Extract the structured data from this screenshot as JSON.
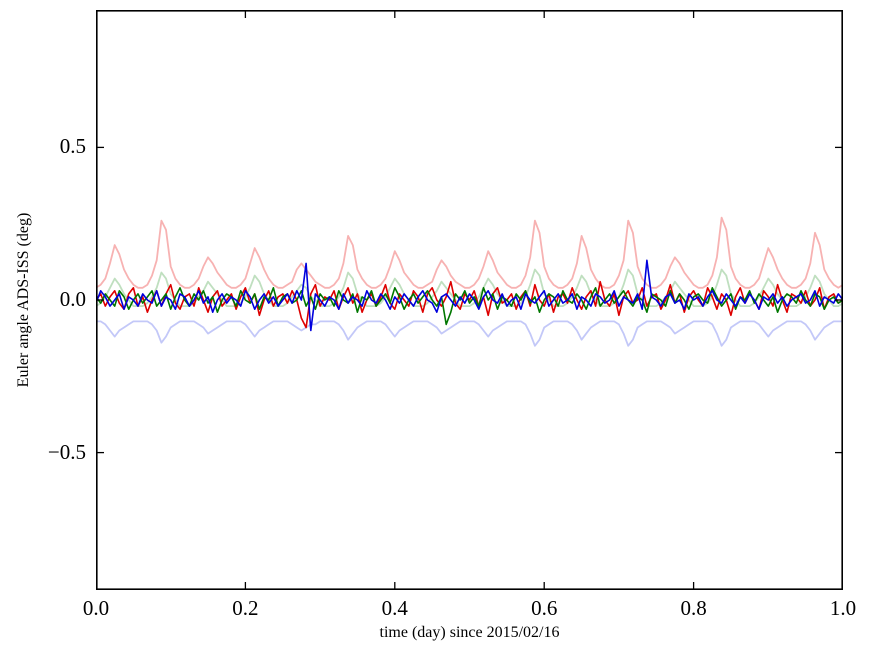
{
  "figure": {
    "background": "#ffffff",
    "frame_color": "#000000"
  },
  "chart_data": {
    "type": "line",
    "title": "",
    "xlabel": "time (day) since 2015/02/16",
    "ylabel": "Euler angle ADS-ISS (deg)",
    "xlim": [
      0.0,
      1.0
    ],
    "ylim": [
      -0.95,
      0.95
    ],
    "grid": false,
    "legend": null,
    "x_sampling_note": "each series holds 161 samples uniformly spaced over time 0.0 to 1.0 day",
    "xticks": [
      {
        "value": 0.0,
        "label": "0.0"
      },
      {
        "value": 0.2,
        "label": "0.2"
      },
      {
        "value": 0.4,
        "label": "0.4"
      },
      {
        "value": 0.6,
        "label": "0.6"
      },
      {
        "value": 0.8,
        "label": "0.8"
      },
      {
        "value": 1.0,
        "label": "1.0"
      }
    ],
    "yticks": [
      {
        "value": -0.5,
        "label": "−0.5"
      },
      {
        "value": 0.0,
        "label": "0.0"
      },
      {
        "value": 0.5,
        "label": "0.5"
      }
    ],
    "series": [
      {
        "name": "red-light",
        "color": "#f7b2b2",
        "width": 1.8,
        "values": [
          0.04,
          0.05,
          0.07,
          0.12,
          0.18,
          0.15,
          0.1,
          0.07,
          0.05,
          0.04,
          0.04,
          0.05,
          0.08,
          0.13,
          0.26,
          0.23,
          0.11,
          0.07,
          0.05,
          0.04,
          0.04,
          0.05,
          0.07,
          0.11,
          0.14,
          0.12,
          0.09,
          0.07,
          0.05,
          0.04,
          0.04,
          0.05,
          0.07,
          0.12,
          0.17,
          0.14,
          0.1,
          0.07,
          0.05,
          0.04,
          0.04,
          0.05,
          0.06,
          0.1,
          0.12,
          0.1,
          0.08,
          0.06,
          0.05,
          0.04,
          0.04,
          0.05,
          0.07,
          0.12,
          0.21,
          0.18,
          0.1,
          0.07,
          0.05,
          0.04,
          0.04,
          0.05,
          0.07,
          0.11,
          0.16,
          0.13,
          0.09,
          0.07,
          0.05,
          0.04,
          0.04,
          0.05,
          0.06,
          0.1,
          0.13,
          0.11,
          0.08,
          0.06,
          0.05,
          0.04,
          0.04,
          0.05,
          0.07,
          0.11,
          0.16,
          0.13,
          0.09,
          0.07,
          0.05,
          0.04,
          0.04,
          0.05,
          0.08,
          0.14,
          0.26,
          0.22,
          0.11,
          0.07,
          0.05,
          0.04,
          0.04,
          0.05,
          0.07,
          0.12,
          0.21,
          0.17,
          0.1,
          0.07,
          0.05,
          0.04,
          0.04,
          0.05,
          0.08,
          0.13,
          0.26,
          0.22,
          0.11,
          0.07,
          0.05,
          0.04,
          0.04,
          0.05,
          0.07,
          0.11,
          0.14,
          0.12,
          0.09,
          0.07,
          0.05,
          0.04,
          0.04,
          0.05,
          0.08,
          0.14,
          0.27,
          0.23,
          0.11,
          0.07,
          0.05,
          0.04,
          0.04,
          0.05,
          0.07,
          0.12,
          0.17,
          0.14,
          0.1,
          0.07,
          0.05,
          0.04,
          0.04,
          0.05,
          0.07,
          0.12,
          0.22,
          0.18,
          0.1,
          0.07,
          0.05,
          0.04,
          0.05
        ]
      },
      {
        "name": "green-light",
        "color": "#bfdfbf",
        "width": 1.8,
        "values": [
          -0.02,
          -0.01,
          0.01,
          0.04,
          0.07,
          0.05,
          0.02,
          0.0,
          -0.02,
          -0.02,
          -0.02,
          -0.01,
          0.01,
          0.04,
          0.09,
          0.07,
          0.02,
          0.0,
          -0.02,
          -0.02,
          -0.02,
          -0.01,
          0.01,
          0.03,
          0.06,
          0.04,
          0.02,
          0.0,
          -0.02,
          -0.02,
          -0.02,
          -0.01,
          0.01,
          0.04,
          0.08,
          0.06,
          0.02,
          0.0,
          -0.02,
          -0.02,
          -0.02,
          -0.01,
          0.01,
          0.03,
          0.05,
          0.04,
          0.01,
          0.0,
          -0.02,
          -0.02,
          -0.02,
          -0.01,
          0.01,
          0.04,
          0.09,
          0.07,
          0.02,
          0.0,
          -0.02,
          -0.02,
          -0.02,
          -0.01,
          0.01,
          0.04,
          0.07,
          0.05,
          0.02,
          0.0,
          -0.02,
          -0.02,
          -0.02,
          -0.01,
          0.01,
          0.03,
          0.06,
          0.04,
          0.02,
          0.0,
          -0.02,
          -0.02,
          -0.02,
          -0.01,
          0.01,
          0.04,
          0.07,
          0.05,
          0.02,
          0.0,
          -0.02,
          -0.02,
          -0.02,
          -0.01,
          0.01,
          0.05,
          0.1,
          0.08,
          0.02,
          0.0,
          -0.02,
          -0.02,
          -0.02,
          -0.01,
          0.01,
          0.04,
          0.08,
          0.06,
          0.02,
          0.0,
          -0.02,
          -0.02,
          -0.02,
          -0.01,
          0.01,
          0.05,
          0.1,
          0.08,
          0.02,
          0.0,
          -0.02,
          -0.02,
          -0.02,
          -0.01,
          0.01,
          0.03,
          0.06,
          0.04,
          0.02,
          0.0,
          -0.02,
          -0.02,
          -0.02,
          -0.01,
          0.01,
          0.05,
          0.1,
          0.08,
          0.02,
          0.0,
          -0.02,
          -0.02,
          -0.02,
          -0.01,
          0.01,
          0.04,
          0.07,
          0.05,
          0.02,
          0.0,
          -0.02,
          -0.02,
          -0.02,
          -0.01,
          0.01,
          0.04,
          0.08,
          0.06,
          0.02,
          0.0,
          -0.02,
          -0.02,
          -0.01
        ]
      },
      {
        "name": "blue-light",
        "color": "#c3c8f8",
        "width": 1.8,
        "values": [
          -0.07,
          -0.07,
          -0.08,
          -0.1,
          -0.12,
          -0.1,
          -0.09,
          -0.08,
          -0.07,
          -0.07,
          -0.07,
          -0.07,
          -0.08,
          -0.1,
          -0.14,
          -0.12,
          -0.09,
          -0.08,
          -0.07,
          -0.07,
          -0.07,
          -0.07,
          -0.08,
          -0.09,
          -0.11,
          -0.1,
          -0.09,
          -0.08,
          -0.07,
          -0.07,
          -0.07,
          -0.07,
          -0.08,
          -0.1,
          -0.12,
          -0.1,
          -0.09,
          -0.08,
          -0.07,
          -0.07,
          -0.07,
          -0.07,
          -0.08,
          -0.09,
          -0.1,
          -0.09,
          -0.08,
          -0.08,
          -0.07,
          -0.07,
          -0.07,
          -0.07,
          -0.08,
          -0.1,
          -0.13,
          -0.11,
          -0.09,
          -0.08,
          -0.07,
          -0.07,
          -0.07,
          -0.07,
          -0.08,
          -0.1,
          -0.12,
          -0.1,
          -0.09,
          -0.08,
          -0.07,
          -0.07,
          -0.07,
          -0.07,
          -0.08,
          -0.09,
          -0.11,
          -0.1,
          -0.09,
          -0.08,
          -0.07,
          -0.07,
          -0.07,
          -0.07,
          -0.08,
          -0.1,
          -0.12,
          -0.1,
          -0.09,
          -0.08,
          -0.07,
          -0.07,
          -0.07,
          -0.07,
          -0.08,
          -0.11,
          -0.15,
          -0.13,
          -0.09,
          -0.08,
          -0.07,
          -0.07,
          -0.07,
          -0.07,
          -0.08,
          -0.1,
          -0.13,
          -0.11,
          -0.09,
          -0.08,
          -0.07,
          -0.07,
          -0.07,
          -0.07,
          -0.08,
          -0.11,
          -0.15,
          -0.13,
          -0.09,
          -0.08,
          -0.07,
          -0.07,
          -0.07,
          -0.07,
          -0.08,
          -0.09,
          -0.11,
          -0.1,
          -0.09,
          -0.08,
          -0.07,
          -0.07,
          -0.07,
          -0.07,
          -0.08,
          -0.11,
          -0.15,
          -0.13,
          -0.09,
          -0.08,
          -0.07,
          -0.07,
          -0.07,
          -0.07,
          -0.08,
          -0.1,
          -0.12,
          -0.1,
          -0.09,
          -0.08,
          -0.07,
          -0.07,
          -0.07,
          -0.07,
          -0.08,
          -0.1,
          -0.13,
          -0.11,
          -0.09,
          -0.08,
          -0.07,
          -0.07,
          -0.07
        ]
      },
      {
        "name": "red",
        "color": "#dd0000",
        "width": 1.6,
        "values": [
          0.0,
          0.02,
          -0.02,
          0.01,
          0.03,
          -0.01,
          -0.03,
          0.02,
          0.04,
          -0.02,
          0.01,
          -0.04,
          0.0,
          0.03,
          -0.02,
          0.02,
          0.05,
          -0.01,
          -0.03,
          0.01,
          0.02,
          -0.02,
          0.04,
          0.0,
          -0.04,
          0.01,
          0.03,
          -0.02,
          0.0,
          0.02,
          -0.03,
          0.01,
          0.04,
          -0.01,
          0.02,
          -0.05,
          0.0,
          0.03,
          -0.02,
          0.01,
          0.02,
          -0.01,
          0.03,
          0.0,
          -0.06,
          -0.09,
          0.02,
          0.05,
          -0.02,
          0.01,
          0.0,
          0.03,
          -0.03,
          0.01,
          0.04,
          -0.01,
          0.02,
          -0.04,
          0.0,
          0.02,
          -0.02,
          0.01,
          0.05,
          -0.01,
          -0.03,
          0.02,
          0.0,
          -0.02,
          0.03,
          0.01,
          -0.04,
          0.02,
          0.04,
          0.0,
          -0.02,
          0.01,
          0.06,
          -0.01,
          -0.03,
          0.02,
          0.0,
          0.03,
          -0.02,
          0.01,
          -0.05,
          0.02,
          0.04,
          -0.01,
          0.0,
          0.02,
          -0.03,
          0.01,
          0.03,
          -0.02,
          0.05,
          0.0,
          -0.02,
          0.02,
          -0.04,
          0.01,
          0.02,
          -0.01,
          0.04,
          0.0,
          -0.03,
          0.01,
          0.03,
          -0.02,
          0.06,
          0.0,
          -0.02,
          0.02,
          -0.05,
          0.01,
          0.03,
          -0.01,
          0.0,
          0.04,
          -0.02,
          0.01,
          0.02,
          -0.03,
          0.0,
          0.05,
          -0.01,
          0.02,
          -0.04,
          0.01,
          0.03,
          0.0,
          -0.02,
          0.04,
          0.01,
          -0.03,
          0.02,
          0.0,
          -0.05,
          0.01,
          0.04,
          -0.01,
          0.02,
          0.0,
          -0.03,
          0.03,
          0.01,
          -0.02,
          0.05,
          0.0,
          -0.04,
          0.02,
          0.01,
          -0.01,
          0.03,
          -0.02,
          0.0,
          0.04,
          -0.03,
          0.01,
          0.02,
          -0.01,
          0.0
        ]
      },
      {
        "name": "green",
        "color": "#007700",
        "width": 1.6,
        "values": [
          0.01,
          -0.01,
          0.02,
          0.0,
          -0.02,
          0.03,
          0.01,
          -0.03,
          0.0,
          0.02,
          -0.01,
          0.01,
          0.03,
          -0.02,
          0.0,
          0.02,
          -0.03,
          0.01,
          0.04,
          0.0,
          -0.02,
          0.02,
          0.0,
          0.03,
          -0.01,
          0.01,
          -0.04,
          0.0,
          0.02,
          0.01,
          -0.02,
          0.03,
          0.0,
          -0.01,
          0.02,
          -0.03,
          0.01,
          0.0,
          0.04,
          -0.02,
          0.01,
          0.02,
          -0.01,
          0.0,
          0.03,
          -0.02,
          0.01,
          -0.03,
          0.02,
          0.0,
          0.01,
          -0.02,
          0.03,
          0.0,
          -0.01,
          0.02,
          -0.04,
          0.01,
          0.0,
          0.03,
          -0.02,
          0.0,
          0.02,
          -0.01,
          0.04,
          0.01,
          -0.03,
          0.0,
          0.02,
          -0.01,
          0.01,
          0.03,
          0.0,
          -0.02,
          0.01,
          -0.08,
          -0.04,
          0.02,
          0.0,
          0.03,
          -0.01,
          0.01,
          -0.02,
          0.04,
          0.0,
          0.02,
          -0.03,
          0.01,
          0.0,
          -0.02,
          0.02,
          0.0,
          0.03,
          -0.01,
          0.01,
          -0.04,
          0.0,
          0.02,
          0.01,
          -0.02,
          0.03,
          0.0,
          -0.01,
          0.02,
          0.0,
          -0.03,
          0.01,
          0.04,
          -0.02,
          0.0,
          0.02,
          -0.01,
          0.01,
          0.03,
          0.0,
          -0.02,
          0.01,
          0.0,
          -0.04,
          0.02,
          0.01,
          0.0,
          -0.02,
          0.03,
          -0.01,
          0.02,
          0.0,
          -0.03,
          0.01,
          0.02,
          0.0,
          -0.01,
          0.04,
          0.01,
          -0.02,
          0.0,
          0.02,
          -0.03,
          0.01,
          0.0,
          0.03,
          -0.01,
          0.02,
          0.0,
          -0.02,
          0.01,
          -0.04,
          0.0,
          0.02,
          0.01,
          -0.01,
          0.03,
          0.0,
          -0.02,
          0.02,
          0.01,
          -0.03,
          0.0,
          0.01,
          -0.01,
          0.0
        ]
      },
      {
        "name": "blue",
        "color": "#0000dd",
        "width": 1.6,
        "values": [
          -0.01,
          0.03,
          0.01,
          -0.02,
          0.0,
          0.02,
          -0.03,
          0.01,
          0.0,
          -0.02,
          0.02,
          0.0,
          -0.01,
          0.03,
          -0.02,
          0.01,
          0.0,
          -0.03,
          0.02,
          0.01,
          -0.02,
          0.0,
          0.03,
          -0.01,
          0.01,
          -0.04,
          0.0,
          0.02,
          -0.01,
          0.01,
          0.0,
          -0.02,
          0.03,
          0.01,
          -0.03,
          0.0,
          0.02,
          -0.01,
          0.01,
          -0.02,
          0.0,
          0.02,
          -0.01,
          0.03,
          0.0,
          0.12,
          -0.1,
          0.02,
          0.0,
          -0.02,
          0.01,
          0.0,
          -0.03,
          0.02,
          -0.01,
          0.01,
          0.0,
          -0.02,
          0.03,
          0.0,
          -0.01,
          0.02,
          0.0,
          -0.03,
          0.01,
          -0.01,
          0.02,
          0.0,
          -0.02,
          0.01,
          0.03,
          0.0,
          -0.01,
          -0.04,
          0.01,
          0.02,
          0.0,
          -0.02,
          0.01,
          -0.01,
          0.02,
          0.0,
          -0.03,
          0.01,
          0.03,
          0.0,
          -0.01,
          0.02,
          -0.02,
          0.0,
          0.01,
          -0.03,
          0.02,
          0.0,
          -0.01,
          0.01,
          0.03,
          -0.02,
          0.0,
          0.02,
          -0.01,
          0.0,
          0.02,
          -0.03,
          0.01,
          0.0,
          -0.02,
          0.02,
          0.01,
          -0.01,
          0.0,
          0.03,
          -0.02,
          0.01,
          0.0,
          -0.01,
          0.02,
          -0.03,
          0.13,
          0.01,
          0.0,
          -0.02,
          0.01,
          0.02,
          -0.01,
          0.0,
          -0.03,
          0.02,
          0.0,
          0.01,
          -0.02,
          0.01,
          0.03,
          0.0,
          -0.01,
          0.02,
          0.0,
          -0.02,
          0.01,
          -0.01,
          0.02,
          0.0,
          -0.03,
          0.01,
          0.0,
          0.02,
          -0.01,
          0.01,
          -0.02,
          0.0,
          0.01,
          0.02,
          -0.01,
          0.0,
          0.03,
          -0.02,
          0.01,
          0.0,
          -0.01,
          0.02,
          0.0
        ]
      }
    ]
  }
}
